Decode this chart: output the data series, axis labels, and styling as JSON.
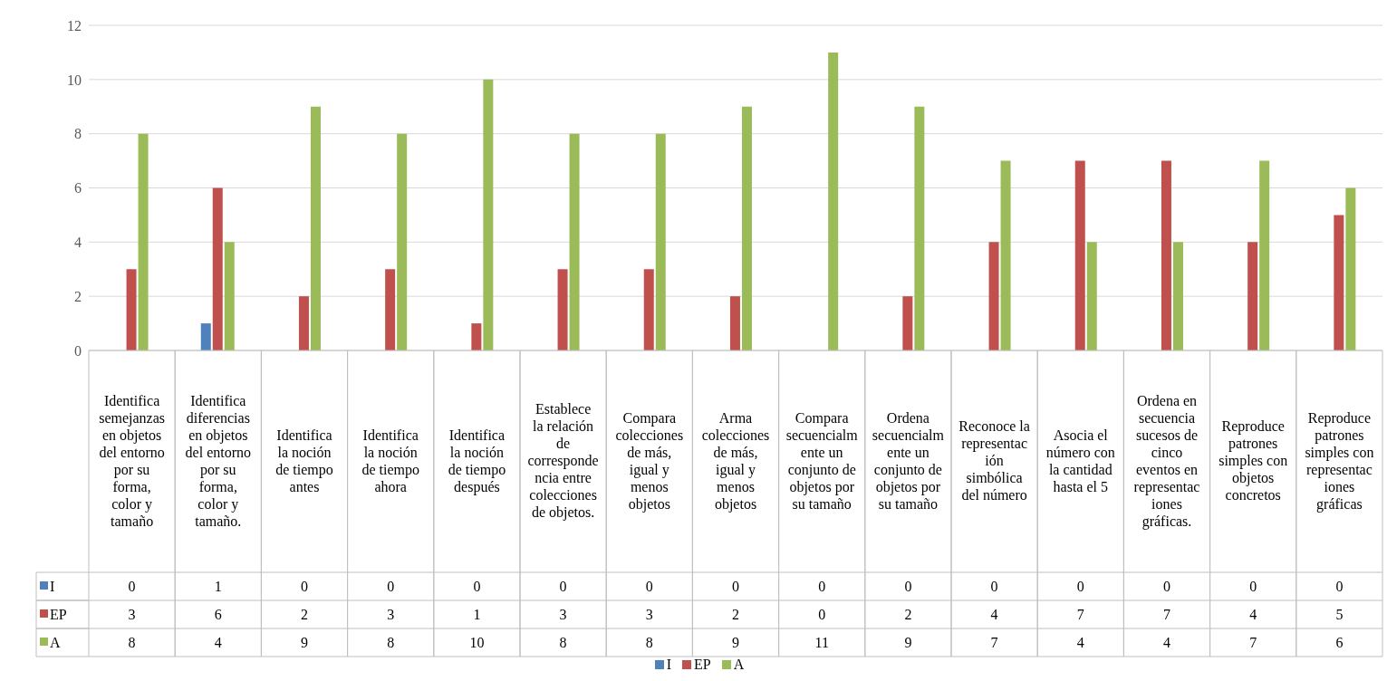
{
  "chart_data": {
    "type": "bar",
    "categories": [
      "Identifica semejanzas en objetos del entorno por su forma, color y tamaño",
      "Identifica diferencias en objetos del entorno por su forma, color y tamaño.",
      "Identifica la noción de tiempo antes",
      "Identifica la noción de tiempo ahora",
      "Identifica la noción de tiempo después",
      "Establece la relación de correspondencia entre colecciones de objetos.",
      "Compara colecciones de más, igual y menos objetos",
      "Arma colecciones de más, igual y menos objetos",
      "Compara secuencialmente un conjunto de objetos por su tamaño",
      "Ordena secuencialmente un conjunto de objetos por su tamaño",
      "Reconoce la representación simbólica del número",
      "Asocia el número con la cantidad hasta el 5",
      "Ordena en secuencia sucesos de cinco eventos en representaciones gráficas.",
      "Reproduce patrones simples con objetos concretos",
      "Reproduce patrones simples con representaciones gráficas"
    ],
    "series": [
      {
        "name": "I",
        "color": "#4f81bd",
        "values": [
          0,
          1,
          0,
          0,
          0,
          0,
          0,
          0,
          0,
          0,
          0,
          0,
          0,
          0,
          0
        ]
      },
      {
        "name": "EP",
        "color": "#c0504d",
        "values": [
          3,
          6,
          2,
          3,
          1,
          3,
          3,
          2,
          0,
          2,
          4,
          7,
          7,
          4,
          5
        ]
      },
      {
        "name": "A",
        "color": "#9bbb59",
        "values": [
          8,
          4,
          9,
          8,
          10,
          8,
          8,
          9,
          11,
          9,
          7,
          4,
          4,
          7,
          6
        ]
      }
    ],
    "ylim": [
      0,
      12
    ],
    "yticks": [
      0,
      2,
      4,
      6,
      8,
      10,
      12
    ],
    "grid": "y",
    "legend": "bottom",
    "data_labels": true
  }
}
